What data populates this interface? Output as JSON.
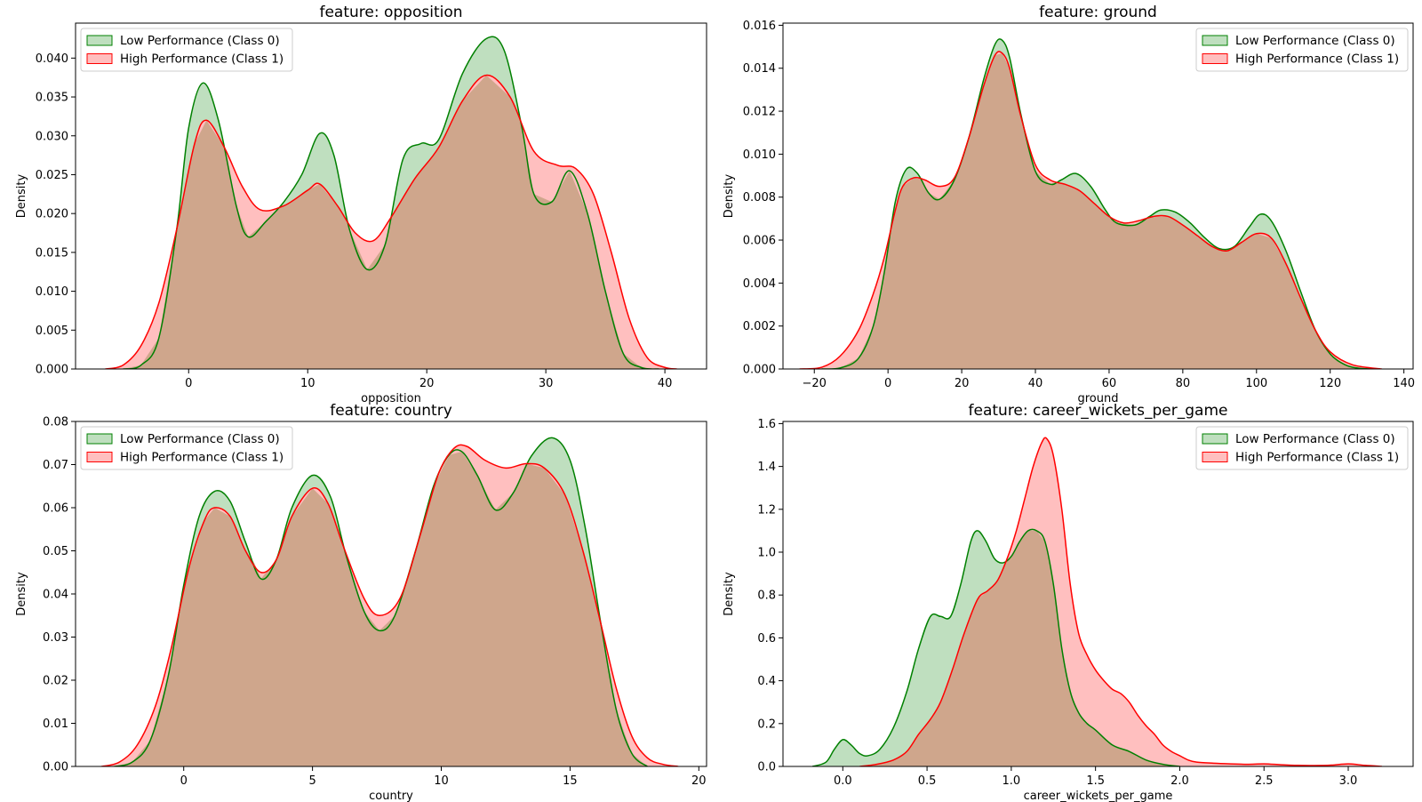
{
  "figure": {
    "legend_labels": [
      "Low Performance (Class 0)",
      "High Performance (Class 1)"
    ],
    "colors": {
      "class0_line": "#008000",
      "class0_fill": "#bfdfbf",
      "class1_line": "#ff0000",
      "class1_fill": "#ffbfbf",
      "overlap_fill": "#cfa68c",
      "overlap_line": "#5b5b12"
    }
  },
  "chart_data": [
    {
      "type": "area",
      "title": "feature: opposition",
      "xlabel": "opposition",
      "ylabel": "Density",
      "xlim": [
        -9.5,
        43.5
      ],
      "ylim": [
        0,
        0.0445
      ],
      "xticks": [
        0,
        10,
        20,
        30,
        40
      ],
      "xtick_labels": [
        "0",
        "10",
        "20",
        "30",
        "40"
      ],
      "yticks": [
        0,
        0.005,
        0.01,
        0.015,
        0.02,
        0.025,
        0.03,
        0.035,
        0.04
      ],
      "ytick_labels": [
        "0.000",
        "0.005",
        "0.010",
        "0.015",
        "0.020",
        "0.025",
        "0.030",
        "0.035",
        "0.040"
      ],
      "legend_position": "upper left",
      "series": [
        {
          "name": "Low Performance (Class 0)",
          "x": [
            -5.5,
            -4,
            -2.5,
            -1,
            0,
            1.2,
            2.5,
            4,
            5,
            6.5,
            8,
            9.5,
            11,
            12.2,
            13.5,
            15,
            16.5,
            18,
            19.5,
            21,
            23,
            25,
            26.5,
            28,
            29,
            30.5,
            32,
            33.5,
            35,
            36.5,
            38,
            39.5
          ],
          "values": [
            0,
            0.0005,
            0.004,
            0.018,
            0.031,
            0.0368,
            0.032,
            0.021,
            0.017,
            0.019,
            0.0215,
            0.025,
            0.0303,
            0.0275,
            0.018,
            0.0128,
            0.016,
            0.027,
            0.029,
            0.0295,
            0.038,
            0.0425,
            0.041,
            0.031,
            0.0225,
            0.0215,
            0.0255,
            0.02,
            0.01,
            0.002,
            0.0002,
            0
          ]
        },
        {
          "name": "High Performance (Class 1)",
          "x": [
            -7,
            -5.5,
            -4,
            -2.5,
            -1,
            0.5,
            1.5,
            3,
            4.5,
            6,
            8,
            10,
            11,
            12.5,
            14,
            15.5,
            17,
            19,
            21,
            23,
            25,
            27,
            29,
            31,
            32.5,
            34,
            35.5,
            37,
            38.5,
            40,
            41
          ],
          "values": [
            0,
            0.0005,
            0.003,
            0.0085,
            0.018,
            0.029,
            0.032,
            0.0285,
            0.0235,
            0.0205,
            0.021,
            0.023,
            0.0238,
            0.021,
            0.0175,
            0.0165,
            0.0195,
            0.0245,
            0.0285,
            0.0345,
            0.0378,
            0.035,
            0.028,
            0.0262,
            0.0258,
            0.0225,
            0.015,
            0.0065,
            0.0015,
            0.0002,
            0
          ]
        }
      ]
    },
    {
      "type": "area",
      "title": "feature: ground",
      "xlabel": "ground",
      "ylabel": "Density",
      "xlim": [
        -28.5,
        142.5
      ],
      "ylim": [
        0,
        0.0161
      ],
      "xticks": [
        -20,
        0,
        20,
        40,
        60,
        80,
        100,
        120,
        140
      ],
      "xtick_labels": [
        "−20",
        "0",
        "20",
        "40",
        "60",
        "80",
        "100",
        "120",
        "140"
      ],
      "yticks": [
        0,
        0.002,
        0.004,
        0.006,
        0.008,
        0.01,
        0.012,
        0.014,
        0.016
      ],
      "ytick_labels": [
        "0.000",
        "0.002",
        "0.004",
        "0.006",
        "0.008",
        "0.010",
        "0.012",
        "0.014",
        "0.016"
      ],
      "legend_position": "upper right",
      "series": [
        {
          "name": "Low Performance (Class 0)",
          "x": [
            -18,
            -13,
            -8,
            -4,
            -1,
            2,
            5,
            8,
            11,
            14,
            18,
            22,
            26,
            29,
            31,
            33,
            36,
            40,
            44,
            47,
            51,
            55,
            59,
            62,
            67,
            71,
            74,
            78,
            82,
            86,
            90,
            94,
            98,
            101,
            104,
            108,
            112,
            116,
            120,
            124,
            128,
            133
          ],
          "values": [
            0,
            5e-05,
            0.0005,
            0.002,
            0.0045,
            0.0078,
            0.0093,
            0.0091,
            0.0082,
            0.0079,
            0.0088,
            0.0108,
            0.0135,
            0.0151,
            0.0153,
            0.0145,
            0.0119,
            0.0092,
            0.0086,
            0.0088,
            0.0091,
            0.0085,
            0.0074,
            0.0068,
            0.0067,
            0.0071,
            0.0074,
            0.0073,
            0.0068,
            0.0061,
            0.0056,
            0.0057,
            0.0066,
            0.0072,
            0.0069,
            0.0055,
            0.0036,
            0.0018,
            0.0007,
            0.0002,
            3e-05,
            0
          ]
        },
        {
          "name": "High Performance (Class 1)",
          "x": [
            -24,
            -18,
            -13,
            -8,
            -4,
            -1,
            2,
            4,
            7,
            10,
            14,
            18,
            22,
            26,
            29,
            31,
            33,
            36,
            40,
            44,
            48,
            52,
            56,
            60,
            64,
            68,
            72,
            76,
            80,
            84,
            88,
            92,
            96,
            100,
            104,
            108,
            112,
            116,
            120,
            126,
            134
          ],
          "values": [
            0,
            8e-05,
            0.0006,
            0.0018,
            0.0035,
            0.0052,
            0.0074,
            0.0085,
            0.0089,
            0.0088,
            0.0085,
            0.0089,
            0.0108,
            0.0132,
            0.0146,
            0.0147,
            0.014,
            0.0118,
            0.0095,
            0.0088,
            0.0086,
            0.0083,
            0.0077,
            0.0071,
            0.0068,
            0.0069,
            0.0071,
            0.0071,
            0.0067,
            0.0062,
            0.0057,
            0.0055,
            0.0059,
            0.0063,
            0.0061,
            0.0049,
            0.0033,
            0.0018,
            0.0008,
            0.0002,
            0
          ]
        }
      ]
    },
    {
      "type": "area",
      "title": "feature: country",
      "xlabel": "country",
      "ylabel": "Density",
      "xlim": [
        -4.2,
        20.3
      ],
      "ylim": [
        0,
        0.08
      ],
      "xticks": [
        0,
        5,
        10,
        15,
        20
      ],
      "xtick_labels": [
        "0",
        "5",
        "10",
        "15",
        "20"
      ],
      "yticks": [
        0,
        0.01,
        0.02,
        0.03,
        0.04,
        0.05,
        0.06,
        0.07,
        0.08
      ],
      "ytick_labels": [
        "0.00",
        "0.01",
        "0.02",
        "0.03",
        "0.04",
        "0.05",
        "0.06",
        "0.07",
        "0.08"
      ],
      "legend_position": "upper left",
      "series": [
        {
          "name": "Low Performance (Class 0)",
          "x": [
            -2.7,
            -2,
            -1.3,
            -0.6,
            0,
            0.6,
            1.2,
            1.8,
            2.4,
            3,
            3.6,
            4.2,
            5,
            5.7,
            6.3,
            7,
            7.6,
            8.2,
            9,
            9.7,
            10.3,
            10.8,
            11.4,
            12.1,
            12.8,
            13.5,
            14.3,
            15,
            15.6,
            16.2,
            16.8,
            17.4,
            18
          ],
          "values": [
            0,
            0.001,
            0.006,
            0.021,
            0.042,
            0.058,
            0.0638,
            0.0615,
            0.052,
            0.0435,
            0.048,
            0.06,
            0.0675,
            0.0625,
            0.049,
            0.036,
            0.0315,
            0.035,
            0.05,
            0.065,
            0.0722,
            0.073,
            0.0675,
            0.0595,
            0.0635,
            0.072,
            0.0762,
            0.071,
            0.055,
            0.033,
            0.013,
            0.003,
            0
          ]
        },
        {
          "name": "High Performance (Class 1)",
          "x": [
            -3.2,
            -2.5,
            -1.8,
            -1.1,
            -0.5,
            0.2,
            0.8,
            1.2,
            1.8,
            2.4,
            3,
            3.6,
            4.2,
            5,
            5.6,
            6.2,
            7,
            7.6,
            8.4,
            9.2,
            9.9,
            10.5,
            11,
            11.7,
            12.5,
            13.3,
            14,
            14.8,
            15.5,
            16.2,
            16.8,
            17.4,
            18,
            18.6,
            19.2
          ],
          "values": [
            0,
            0.001,
            0.005,
            0.014,
            0.027,
            0.046,
            0.057,
            0.06,
            0.058,
            0.05,
            0.045,
            0.048,
            0.058,
            0.0645,
            0.061,
            0.051,
            0.039,
            0.035,
            0.039,
            0.054,
            0.068,
            0.0738,
            0.0742,
            0.071,
            0.0692,
            0.0702,
            0.0692,
            0.063,
            0.05,
            0.033,
            0.018,
            0.007,
            0.002,
            0.0005,
            0
          ]
        }
      ]
    },
    {
      "type": "area",
      "title": "feature: career_wickets_per_game",
      "xlabel": "career_wickets_per_game",
      "ylabel": "Density",
      "xlim": [
        -0.355,
        3.385
      ],
      "ylim": [
        0,
        1.61
      ],
      "xticks": [
        0,
        0.5,
        1,
        1.5,
        2,
        2.5,
        3
      ],
      "xtick_labels": [
        "0.0",
        "0.5",
        "1.0",
        "1.5",
        "2.0",
        "2.5",
        "3.0"
      ],
      "yticks": [
        0,
        0.2,
        0.4,
        0.6,
        0.8,
        1,
        1.2,
        1.4,
        1.6
      ],
      "ytick_labels": [
        "0.0",
        "0.2",
        "0.4",
        "0.6",
        "0.8",
        "1.0",
        "1.2",
        "1.4",
        "1.6"
      ],
      "legend_position": "upper right",
      "series": [
        {
          "name": "Low Performance (Class 0)",
          "x": [
            -0.18,
            -0.1,
            -0.05,
            0,
            0.05,
            0.1,
            0.15,
            0.22,
            0.3,
            0.38,
            0.45,
            0.52,
            0.58,
            0.64,
            0.7,
            0.76,
            0.8,
            0.85,
            0.9,
            0.95,
            1,
            1.05,
            1.1,
            1.15,
            1.2,
            1.25,
            1.3,
            1.35,
            1.4,
            1.45,
            1.5,
            1.6,
            1.7,
            1.8,
            1.9,
            2
          ],
          "values": [
            0,
            0.02,
            0.08,
            0.125,
            0.1,
            0.06,
            0.05,
            0.08,
            0.18,
            0.35,
            0.55,
            0.7,
            0.7,
            0.7,
            0.85,
            1.05,
            1.1,
            1.05,
            0.97,
            0.95,
            0.98,
            1.05,
            1.1,
            1.1,
            1.05,
            0.85,
            0.55,
            0.35,
            0.25,
            0.2,
            0.17,
            0.1,
            0.07,
            0.03,
            0.01,
            0
          ]
        },
        {
          "name": "High Performance (Class 1)",
          "x": [
            0.1,
            0.2,
            0.3,
            0.38,
            0.45,
            0.52,
            0.58,
            0.65,
            0.72,
            0.8,
            0.86,
            0.92,
            0.98,
            1.03,
            1.08,
            1.13,
            1.18,
            1.21,
            1.25,
            1.3,
            1.35,
            1.4,
            1.45,
            1.5,
            1.55,
            1.6,
            1.65,
            1.7,
            1.75,
            1.8,
            1.85,
            1.9,
            1.95,
            2,
            2.05,
            2.1,
            2.2,
            2.3,
            2.4,
            2.5,
            2.6,
            2.7,
            2.8,
            2.9,
            3,
            3.1,
            3.2
          ],
          "values": [
            0,
            0.01,
            0.03,
            0.07,
            0.15,
            0.22,
            0.3,
            0.45,
            0.62,
            0.78,
            0.82,
            0.87,
            0.98,
            1.1,
            1.25,
            1.4,
            1.51,
            1.53,
            1.45,
            1.2,
            0.85,
            0.62,
            0.52,
            0.45,
            0.4,
            0.36,
            0.34,
            0.3,
            0.24,
            0.19,
            0.15,
            0.1,
            0.07,
            0.05,
            0.03,
            0.02,
            0.015,
            0.012,
            0.01,
            0.012,
            0.008,
            0.005,
            0.004,
            0.006,
            0.012,
            0.005,
            0
          ]
        }
      ]
    }
  ]
}
